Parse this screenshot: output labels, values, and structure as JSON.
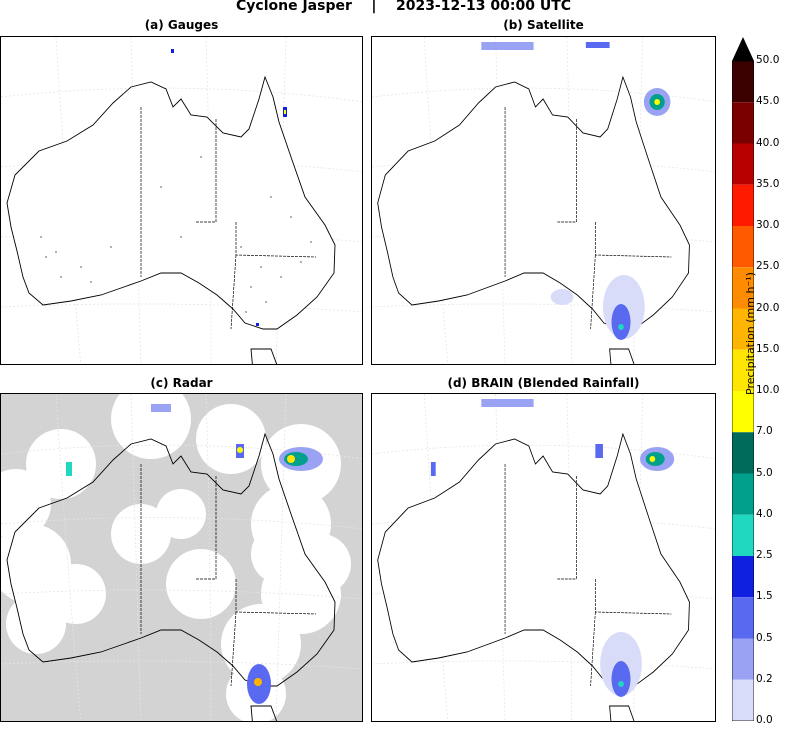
{
  "title": "Cyclone Jasper    |    2023-12-13 00:00 UTC",
  "panels": [
    {
      "label": "(a) Gauges"
    },
    {
      "label": "(b) Satellite"
    },
    {
      "label": "(c) Radar"
    },
    {
      "label": "(d) BRAIN (Blended Rainfall)"
    }
  ],
  "colorbar": {
    "label": "Precipitation (mm h⁻¹)",
    "ticks": [
      "50.0",
      "45.0",
      "40.0",
      "35.0",
      "30.0",
      "25.0",
      "20.0",
      "15.0",
      "10.0",
      "7.0",
      "5.0",
      "4.0",
      "2.5",
      "1.5",
      "0.5",
      "0.2",
      "0.0"
    ],
    "colors": [
      "#3b0000",
      "#7a0000",
      "#b80000",
      "#ff1a00",
      "#ff5a00",
      "#ff8c00",
      "#ffb400",
      "#ffe600",
      "#ffff00",
      "#006b5a",
      "#00a08c",
      "#20d8c0",
      "#1020e0",
      "#5a6af0",
      "#9aa2f4",
      "#d8dcf8",
      "#ffffff"
    ]
  },
  "colors": {
    "land_mask_grey": "#d3d3d3",
    "coast": "#000000",
    "grid": "#dddddd"
  }
}
